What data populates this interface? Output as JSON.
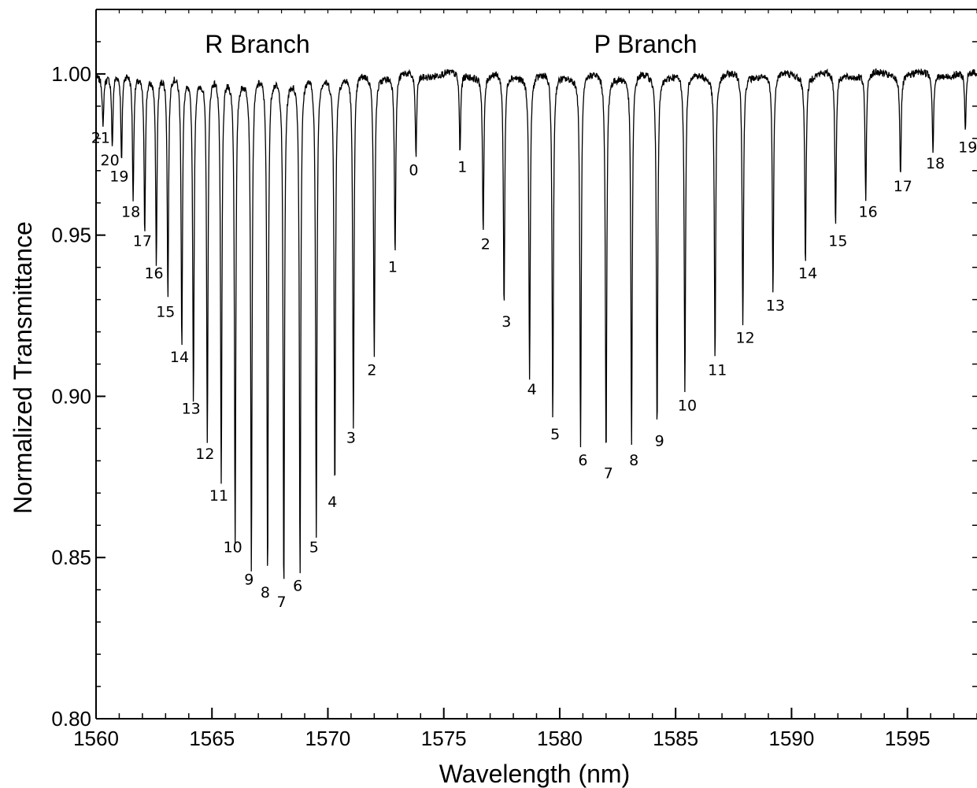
{
  "chart_data": {
    "type": "line",
    "title": "",
    "xlabel": "Wavelength (nm)",
    "ylabel": "Normalized Transmittance",
    "xlim": [
      1560,
      1598
    ],
    "ylim": [
      0.8,
      1.02
    ],
    "xticks": [
      1560,
      1565,
      1570,
      1575,
      1580,
      1585,
      1590,
      1595
    ],
    "xtick_labels": [
      "1560",
      "1565",
      "1570",
      "1575",
      "1580",
      "1585",
      "1590",
      "1595"
    ],
    "yticks": [
      0.8,
      0.85,
      0.9,
      0.95,
      1.0
    ],
    "ytick_labels": [
      "0.80",
      "0.85",
      "0.90",
      "0.95",
      "1.00"
    ],
    "grid": false,
    "baseline": 1.0,
    "annotations": [
      {
        "text": "R Branch"
      },
      {
        "text": "P Branch"
      }
    ],
    "series": [
      {
        "branch": "R",
        "lines": [
          {
            "label": "0",
            "x": 1573.8,
            "y": 0.974
          },
          {
            "label": "1",
            "x": 1572.9,
            "y": 0.944
          },
          {
            "label": "2",
            "x": 1572.0,
            "y": 0.912
          },
          {
            "label": "3",
            "x": 1571.1,
            "y": 0.891
          },
          {
            "label": "4",
            "x": 1570.3,
            "y": 0.871
          },
          {
            "label": "5",
            "x": 1569.5,
            "y": 0.857
          },
          {
            "label": "6",
            "x": 1568.8,
            "y": 0.845
          },
          {
            "label": "7",
            "x": 1568.1,
            "y": 0.84
          },
          {
            "label": "8",
            "x": 1567.4,
            "y": 0.843
          },
          {
            "label": "9",
            "x": 1566.7,
            "y": 0.847
          },
          {
            "label": "10",
            "x": 1566.0,
            "y": 0.857
          },
          {
            "label": "11",
            "x": 1565.4,
            "y": 0.873
          },
          {
            "label": "12",
            "x": 1564.8,
            "y": 0.886
          },
          {
            "label": "13",
            "x": 1564.2,
            "y": 0.9
          },
          {
            "label": "14",
            "x": 1563.7,
            "y": 0.916
          },
          {
            "label": "15",
            "x": 1563.1,
            "y": 0.93
          },
          {
            "label": "16",
            "x": 1562.6,
            "y": 0.942
          },
          {
            "label": "17",
            "x": 1562.1,
            "y": 0.952
          },
          {
            "label": "18",
            "x": 1561.6,
            "y": 0.961
          },
          {
            "label": "19",
            "x": 1561.1,
            "y": 0.972
          },
          {
            "label": "20",
            "x": 1560.7,
            "y": 0.977
          },
          {
            "label": "21",
            "x": 1560.3,
            "y": 0.984
          }
        ]
      },
      {
        "branch": "P",
        "lines": [
          {
            "label": "1",
            "x": 1575.7,
            "y": 0.975
          },
          {
            "label": "2",
            "x": 1576.7,
            "y": 0.951
          },
          {
            "label": "3",
            "x": 1577.6,
            "y": 0.927
          },
          {
            "label": "4",
            "x": 1578.7,
            "y": 0.906
          },
          {
            "label": "5",
            "x": 1579.7,
            "y": 0.892
          },
          {
            "label": "6",
            "x": 1580.9,
            "y": 0.884
          },
          {
            "label": "7",
            "x": 1582.0,
            "y": 0.88
          },
          {
            "label": "8",
            "x": 1583.1,
            "y": 0.884
          },
          {
            "label": "9",
            "x": 1584.2,
            "y": 0.89
          },
          {
            "label": "10",
            "x": 1585.4,
            "y": 0.901
          },
          {
            "label": "11",
            "x": 1586.7,
            "y": 0.912
          },
          {
            "label": "12",
            "x": 1587.9,
            "y": 0.922
          },
          {
            "label": "13",
            "x": 1589.2,
            "y": 0.932
          },
          {
            "label": "14",
            "x": 1590.6,
            "y": 0.942
          },
          {
            "label": "15",
            "x": 1591.9,
            "y": 0.952
          },
          {
            "label": "16",
            "x": 1593.2,
            "y": 0.961
          },
          {
            "label": "17",
            "x": 1594.7,
            "y": 0.969
          },
          {
            "label": "18",
            "x": 1596.1,
            "y": 0.976
          },
          {
            "label": "19",
            "x": 1597.5,
            "y": 0.981
          }
        ]
      }
    ],
    "colors": {
      "line": "#000000",
      "background": "#ffffff"
    }
  }
}
